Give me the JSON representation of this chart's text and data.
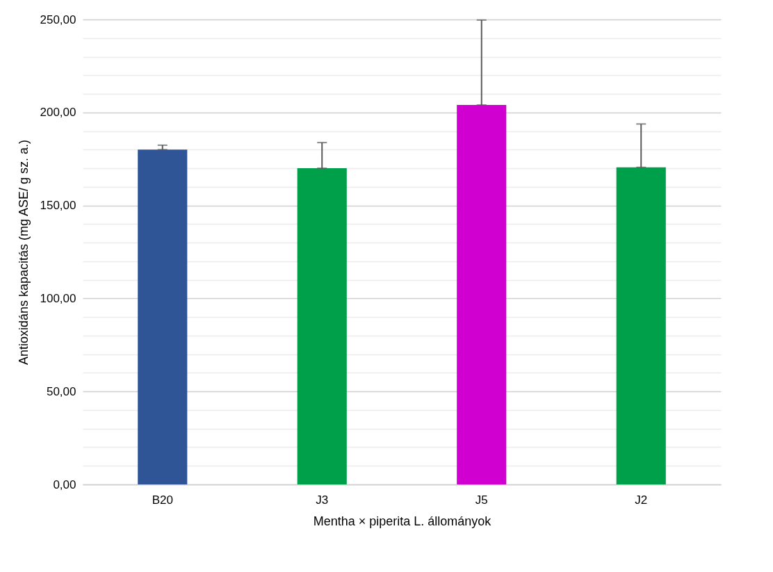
{
  "chart_data": {
    "type": "bar",
    "xlabel": "Mentha × piperita L. állományok",
    "ylabel": "Antioxidáns kapacitás (mg ASE/ g sz. a.)",
    "categories": [
      "B20",
      "J3",
      "J5",
      "J2"
    ],
    "values": [
      180,
      170,
      204,
      170.5
    ],
    "colors": [
      "#2f5597",
      "#00a04a",
      "#d000d0",
      "#00a04a"
    ],
    "errors": [
      [
        180,
        182.4
      ],
      [
        170,
        183.8
      ],
      [
        204,
        249.7
      ],
      [
        170.5,
        193.8
      ]
    ],
    "ylim": [
      0,
      250
    ],
    "yticks": [
      {
        "value": 0,
        "label": "0,00"
      },
      {
        "value": 10,
        "label": null
      },
      {
        "value": 20,
        "label": null
      },
      {
        "value": 30,
        "label": null
      },
      {
        "value": 40,
        "label": null
      },
      {
        "value": 50,
        "label": "50,00"
      },
      {
        "value": 60,
        "label": null
      },
      {
        "value": 70,
        "label": null
      },
      {
        "value": 80,
        "label": null
      },
      {
        "value": 90,
        "label": null
      },
      {
        "value": 100,
        "label": "100,00"
      },
      {
        "value": 110,
        "label": null
      },
      {
        "value": 120,
        "label": null
      },
      {
        "value": 130,
        "label": null
      },
      {
        "value": 140,
        "label": null
      },
      {
        "value": 150,
        "label": "150,00"
      },
      {
        "value": 160,
        "label": null
      },
      {
        "value": 170,
        "label": null
      },
      {
        "value": 180,
        "label": null
      },
      {
        "value": 190,
        "label": null
      },
      {
        "value": 200,
        "label": "200,00"
      },
      {
        "value": 210,
        "label": null
      },
      {
        "value": 220,
        "label": null
      },
      {
        "value": 230,
        "label": null
      },
      {
        "value": 240,
        "label": null
      },
      {
        "value": 250,
        "label": "250,00"
      }
    ],
    "grid": true
  }
}
